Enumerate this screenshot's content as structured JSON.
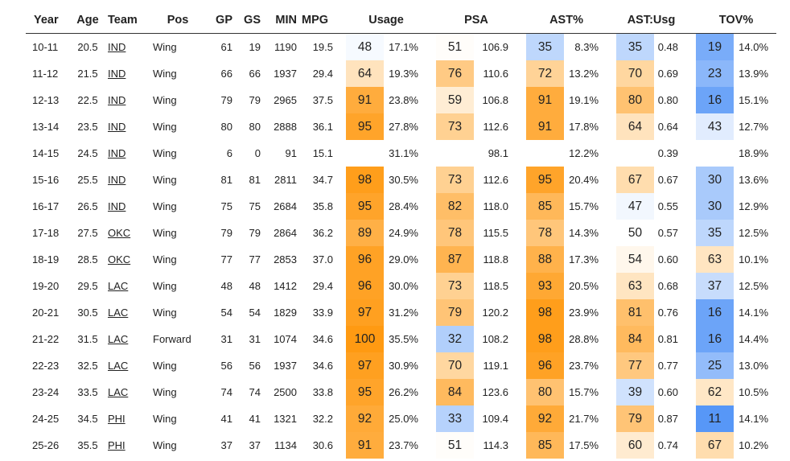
{
  "columns": [
    "Year",
    "Age",
    "Team",
    "Pos",
    "GP",
    "GS",
    "MIN",
    "MPG",
    "Usage",
    "PSA",
    "AST%",
    "AST:Usg",
    "TOV%"
  ],
  "rows": [
    {
      "year": "10-11",
      "age": "20.5",
      "team": "IND",
      "pos": "Wing",
      "gp": "61",
      "gs": "19",
      "min": "1190",
      "mpg": "19.5",
      "usg_pct": "48",
      "usg": "17.1%",
      "psa_pct": "51",
      "psa": "106.9",
      "ast_pct": "35",
      "ast": "8.3%",
      "astusg_pct": "35",
      "astusg": "0.48",
      "tov_pct": "19",
      "tov": "14.0%"
    },
    {
      "year": "11-12",
      "age": "21.5",
      "team": "IND",
      "pos": "Wing",
      "gp": "66",
      "gs": "66",
      "min": "1937",
      "mpg": "29.4",
      "usg_pct": "64",
      "usg": "19.3%",
      "psa_pct": "76",
      "psa": "110.6",
      "ast_pct": "72",
      "ast": "13.2%",
      "astusg_pct": "70",
      "astusg": "0.69",
      "tov_pct": "23",
      "tov": "13.9%"
    },
    {
      "year": "12-13",
      "age": "22.5",
      "team": "IND",
      "pos": "Wing",
      "gp": "79",
      "gs": "79",
      "min": "2965",
      "mpg": "37.5",
      "usg_pct": "91",
      "usg": "23.8%",
      "psa_pct": "59",
      "psa": "106.8",
      "ast_pct": "91",
      "ast": "19.1%",
      "astusg_pct": "80",
      "astusg": "0.80",
      "tov_pct": "16",
      "tov": "15.1%"
    },
    {
      "year": "13-14",
      "age": "23.5",
      "team": "IND",
      "pos": "Wing",
      "gp": "80",
      "gs": "80",
      "min": "2888",
      "mpg": "36.1",
      "usg_pct": "95",
      "usg": "27.8%",
      "psa_pct": "73",
      "psa": "112.6",
      "ast_pct": "91",
      "ast": "17.8%",
      "astusg_pct": "64",
      "astusg": "0.64",
      "tov_pct": "43",
      "tov": "12.7%"
    },
    {
      "year": "14-15",
      "age": "24.5",
      "team": "IND",
      "pos": "Wing",
      "gp": "6",
      "gs": "0",
      "min": "91",
      "mpg": "15.1",
      "usg_pct": "",
      "usg": "31.1%",
      "psa_pct": "",
      "psa": "98.1",
      "ast_pct": "",
      "ast": "12.2%",
      "astusg_pct": "",
      "astusg": "0.39",
      "tov_pct": "",
      "tov": "18.9%"
    },
    {
      "year": "15-16",
      "age": "25.5",
      "team": "IND",
      "pos": "Wing",
      "gp": "81",
      "gs": "81",
      "min": "2811",
      "mpg": "34.7",
      "usg_pct": "98",
      "usg": "30.5%",
      "psa_pct": "73",
      "psa": "112.6",
      "ast_pct": "95",
      "ast": "20.4%",
      "astusg_pct": "67",
      "astusg": "0.67",
      "tov_pct": "30",
      "tov": "13.6%"
    },
    {
      "year": "16-17",
      "age": "26.5",
      "team": "IND",
      "pos": "Wing",
      "gp": "75",
      "gs": "75",
      "min": "2684",
      "mpg": "35.8",
      "usg_pct": "95",
      "usg": "28.4%",
      "psa_pct": "82",
      "psa": "118.0",
      "ast_pct": "85",
      "ast": "15.7%",
      "astusg_pct": "47",
      "astusg": "0.55",
      "tov_pct": "30",
      "tov": "12.9%"
    },
    {
      "year": "17-18",
      "age": "27.5",
      "team": "OKC",
      "pos": "Wing",
      "gp": "79",
      "gs": "79",
      "min": "2864",
      "mpg": "36.2",
      "usg_pct": "89",
      "usg": "24.9%",
      "psa_pct": "78",
      "psa": "115.5",
      "ast_pct": "78",
      "ast": "14.3%",
      "astusg_pct": "50",
      "astusg": "0.57",
      "tov_pct": "35",
      "tov": "12.5%"
    },
    {
      "year": "18-19",
      "age": "28.5",
      "team": "OKC",
      "pos": "Wing",
      "gp": "77",
      "gs": "77",
      "min": "2853",
      "mpg": "37.0",
      "usg_pct": "96",
      "usg": "29.0%",
      "psa_pct": "87",
      "psa": "118.8",
      "ast_pct": "88",
      "ast": "17.3%",
      "astusg_pct": "54",
      "astusg": "0.60",
      "tov_pct": "63",
      "tov": "10.1%"
    },
    {
      "year": "19-20",
      "age": "29.5",
      "team": "LAC",
      "pos": "Wing",
      "gp": "48",
      "gs": "48",
      "min": "1412",
      "mpg": "29.4",
      "usg_pct": "96",
      "usg": "30.0%",
      "psa_pct": "73",
      "psa": "118.5",
      "ast_pct": "93",
      "ast": "20.5%",
      "astusg_pct": "63",
      "astusg": "0.68",
      "tov_pct": "37",
      "tov": "12.5%"
    },
    {
      "year": "20-21",
      "age": "30.5",
      "team": "LAC",
      "pos": "Wing",
      "gp": "54",
      "gs": "54",
      "min": "1829",
      "mpg": "33.9",
      "usg_pct": "97",
      "usg": "31.2%",
      "psa_pct": "79",
      "psa": "120.2",
      "ast_pct": "98",
      "ast": "23.9%",
      "astusg_pct": "81",
      "astusg": "0.76",
      "tov_pct": "16",
      "tov": "14.1%"
    },
    {
      "year": "21-22",
      "age": "31.5",
      "team": "LAC",
      "pos": "Forward",
      "gp": "31",
      "gs": "31",
      "min": "1074",
      "mpg": "34.6",
      "usg_pct": "100",
      "usg": "35.5%",
      "psa_pct": "32",
      "psa": "108.2",
      "ast_pct": "98",
      "ast": "28.8%",
      "astusg_pct": "84",
      "astusg": "0.81",
      "tov_pct": "16",
      "tov": "14.4%"
    },
    {
      "year": "22-23",
      "age": "32.5",
      "team": "LAC",
      "pos": "Wing",
      "gp": "56",
      "gs": "56",
      "min": "1937",
      "mpg": "34.6",
      "usg_pct": "97",
      "usg": "30.9%",
      "psa_pct": "70",
      "psa": "119.1",
      "ast_pct": "96",
      "ast": "23.7%",
      "astusg_pct": "77",
      "astusg": "0.77",
      "tov_pct": "25",
      "tov": "13.0%"
    },
    {
      "year": "23-24",
      "age": "33.5",
      "team": "LAC",
      "pos": "Wing",
      "gp": "74",
      "gs": "74",
      "min": "2500",
      "mpg": "33.8",
      "usg_pct": "95",
      "usg": "26.2%",
      "psa_pct": "84",
      "psa": "123.6",
      "ast_pct": "80",
      "ast": "15.7%",
      "astusg_pct": "39",
      "astusg": "0.60",
      "tov_pct": "62",
      "tov": "10.5%"
    },
    {
      "year": "24-25",
      "age": "34.5",
      "team": "PHI",
      "pos": "Wing",
      "gp": "41",
      "gs": "41",
      "min": "1321",
      "mpg": "32.2",
      "usg_pct": "92",
      "usg": "25.0%",
      "psa_pct": "33",
      "psa": "109.4",
      "ast_pct": "92",
      "ast": "21.7%",
      "astusg_pct": "79",
      "astusg": "0.87",
      "tov_pct": "11",
      "tov": "14.1%"
    },
    {
      "year": "25-26",
      "age": "35.5",
      "team": "PHI",
      "pos": "Wing",
      "gp": "37",
      "gs": "37",
      "min": "1134",
      "mpg": "30.6",
      "usg_pct": "91",
      "usg": "23.7%",
      "psa_pct": "51",
      "psa": "114.3",
      "ast_pct": "85",
      "ast": "17.5%",
      "astusg_pct": "60",
      "astusg": "0.74",
      "tov_pct": "67",
      "tov": "10.2%"
    }
  ],
  "percentile_colors": {
    "high": "#ff9a12",
    "mid": "#ffffff",
    "low": "#3d87f6"
  }
}
